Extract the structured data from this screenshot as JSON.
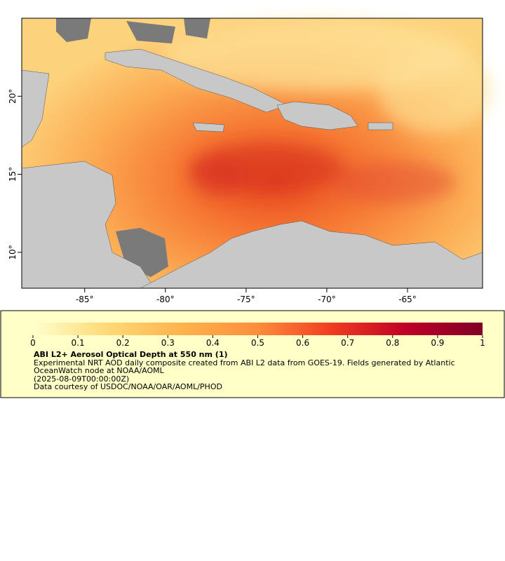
{
  "map": {
    "xlim": [
      -88.9,
      -60.35
    ],
    "ylim": [
      7.7,
      25
    ],
    "xticks": [
      {
        "value": -85,
        "label": "-85°"
      },
      {
        "value": -80,
        "label": "-80°"
      },
      {
        "value": -75,
        "label": "-75°"
      },
      {
        "value": -70,
        "label": "-70°"
      },
      {
        "value": -65,
        "label": "-65°"
      }
    ],
    "yticks": [
      {
        "value": 20,
        "label": "20°"
      },
      {
        "value": 15,
        "label": "15°"
      },
      {
        "value": 10,
        "label": "10°"
      }
    ]
  },
  "colorbar": {
    "lim": [
      0,
      1
    ],
    "ticks": [
      0,
      0.1,
      0.2,
      0.3,
      0.4,
      0.5,
      0.6,
      0.7,
      0.8,
      0.9,
      1
    ],
    "colors": [
      "#ffffcc",
      "#fed976",
      "#feb24c",
      "#fd8d3c",
      "#f03b20",
      "#bd0026",
      "#800026"
    ]
  },
  "caption": {
    "title": "ABI L2+ Aerosol Optical Depth at 550 nm (1)",
    "description": "Experimental NRT AOD daily composite created from ABI L2 data from GOES-19. Fields generated by Atlantic OceanWatch node at NOAA/AOML",
    "time": "(2025-08-09T00:00:00Z)",
    "credit": "Data courtesy of USDOC/NOAA/OAR/AOML/PHOD"
  }
}
